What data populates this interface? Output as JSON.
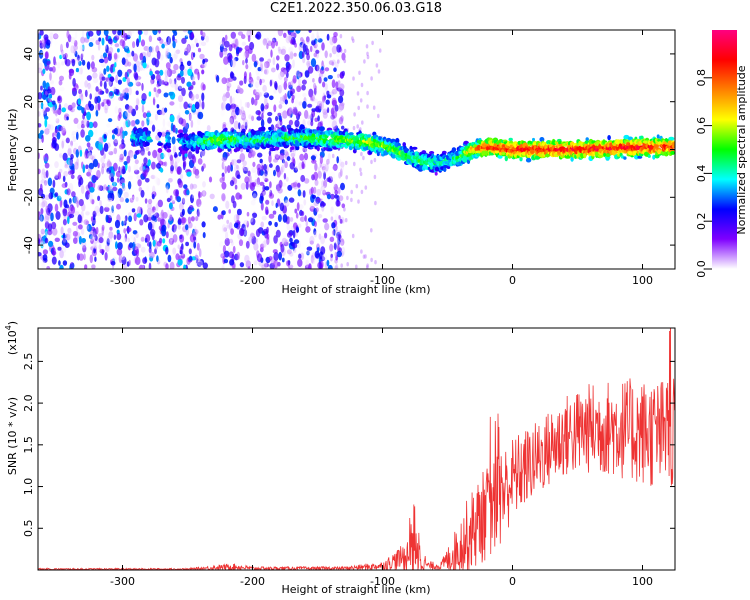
{
  "title": "C2E1.2022.350.06.03.G18",
  "chart_data": [
    {
      "type": "heatmap",
      "xlabel": "Height of straight line (km)",
      "ylabel": "Frequency (Hz)",
      "xlim": [
        -365,
        125
      ],
      "ylim": [
        -50,
        50
      ],
      "xticks": [
        -300,
        -200,
        -100,
        0,
        100
      ],
      "yticks": [
        -40,
        -20,
        0,
        20,
        40
      ],
      "colorbar": {
        "label": "Normalized spectral amplitude",
        "range": [
          0,
          1
        ],
        "ticks": [
          "0.0",
          "0.2",
          "0.4",
          "0.6",
          "0.8"
        ],
        "colormap": [
          "#ffffff",
          "#7f00ff",
          "#0000ff",
          "#00ffff",
          "#00ff00",
          "#ffff00",
          "#ff8000",
          "#ff0000",
          "#ff0080"
        ]
      },
      "ridge": {
        "x": [
          -290,
          -250,
          -230,
          -200,
          -160,
          -130,
          -110,
          -95,
          -80,
          -70,
          -60,
          -50,
          -40,
          -30,
          -20,
          0,
          50,
          100,
          125
        ],
        "freq": [
          5,
          3,
          4,
          4,
          5,
          4,
          3,
          1,
          -3,
          -5,
          -6,
          -5,
          -3,
          0,
          1,
          0,
          0,
          1,
          1
        ],
        "amplitude": [
          0.4,
          0.35,
          0.55,
          0.45,
          0.5,
          0.55,
          0.6,
          0.55,
          0.5,
          0.5,
          0.45,
          0.4,
          0.5,
          0.7,
          0.85,
          0.9,
          0.9,
          0.9,
          0.85
        ]
      },
      "noise_region": [
        -365,
        -130
      ]
    },
    {
      "type": "line",
      "xlabel": "Height of straight line (km)",
      "ylabel": "SNR (10 * v/v)",
      "yscale_label": "(x10",
      "yscale_exp": "4",
      "yscale_close": ")",
      "xlim": [
        -365,
        125
      ],
      "ylim": [
        0,
        2.9
      ],
      "xticks": [
        -300,
        -200,
        -100,
        0,
        100
      ],
      "yticks": [
        0.5,
        1.0,
        1.5,
        2.0,
        2.5
      ],
      "color": "#ee3333",
      "envelope": {
        "x": [
          -365,
          -250,
          -215,
          -200,
          -130,
          -100,
          -85,
          -75,
          -65,
          -55,
          -45,
          -35,
          -25,
          -10,
          0,
          20,
          40,
          60,
          80,
          100,
          125
        ],
        "mean": [
          0.01,
          0.01,
          0.04,
          0.02,
          0.02,
          0.05,
          0.15,
          0.2,
          0.05,
          0.05,
          0.2,
          0.4,
          0.6,
          0.85,
          1.1,
          1.35,
          1.6,
          1.7,
          1.7,
          1.65,
          1.6
        ],
        "amp": [
          0.01,
          0.01,
          0.04,
          0.02,
          0.02,
          0.05,
          0.15,
          0.3,
          0.05,
          0.05,
          0.25,
          0.45,
          0.55,
          0.6,
          0.5,
          0.45,
          0.5,
          0.55,
          0.6,
          0.65,
          0.7
        ]
      }
    }
  ]
}
